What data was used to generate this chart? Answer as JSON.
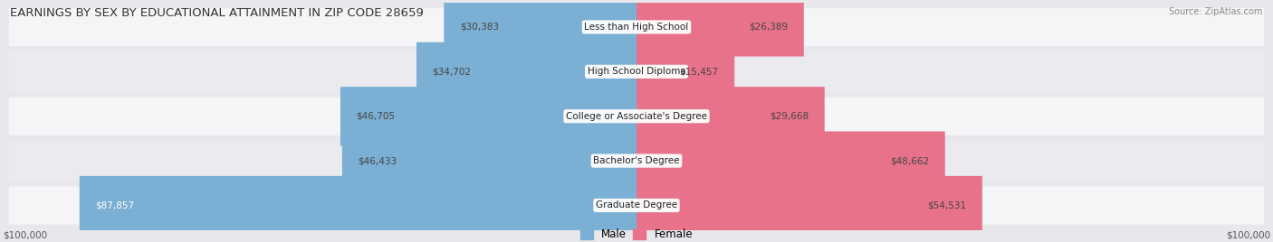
{
  "title": "EARNINGS BY SEX BY EDUCATIONAL ATTAINMENT IN ZIP CODE 28659",
  "source": "Source: ZipAtlas.com",
  "categories": [
    "Less than High School",
    "High School Diploma",
    "College or Associate's Degree",
    "Bachelor's Degree",
    "Graduate Degree"
  ],
  "male_values": [
    30383,
    34702,
    46705,
    46433,
    87857
  ],
  "female_values": [
    26389,
    15457,
    29668,
    48662,
    54531
  ],
  "male_color": "#7bafd4",
  "female_color": "#e8728a",
  "max_value": 100000,
  "background_color": "#e8e8ec",
  "row_bg_color": "#f2f2f5",
  "title_fontsize": 9.5,
  "label_fontsize": 7.5,
  "axis_label": "$100,000"
}
